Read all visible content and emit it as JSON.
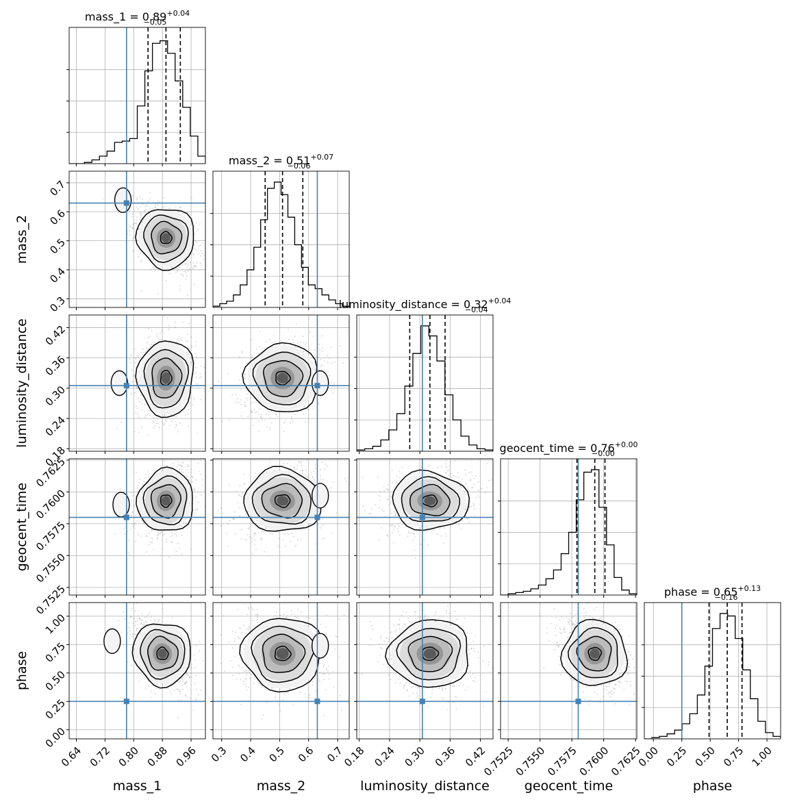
{
  "chart_data": {
    "type": "corner",
    "parameters": [
      {
        "name": "mass_1",
        "range": [
          0.62,
          1.0
        ],
        "ticks": [
          0.64,
          0.72,
          0.8,
          0.88,
          0.96
        ],
        "tick_labels": [
          "0.64",
          "0.72",
          "0.80",
          "0.88",
          "0.96"
        ],
        "median": 0.89,
        "q_low": 0.84,
        "q_high": 0.93,
        "truth": 0.78,
        "title_value": "0.89",
        "title_plus": "+0.04",
        "title_minus": "−0.05",
        "xlabel": "mass_1",
        "ylabel": ""
      },
      {
        "name": "mass_2",
        "range": [
          0.27,
          0.74
        ],
        "ticks": [
          0.3,
          0.4,
          0.5,
          0.6,
          0.7
        ],
        "tick_labels": [
          "0.3",
          "0.4",
          "0.5",
          "0.6",
          "0.7"
        ],
        "median": 0.51,
        "q_low": 0.45,
        "q_high": 0.58,
        "truth": 0.63,
        "title_value": "0.51",
        "title_plus": "+0.07",
        "title_minus": "−0.06",
        "xlabel": "mass_2",
        "ylabel": "mass_2"
      },
      {
        "name": "luminosity_distance",
        "range": [
          0.175,
          0.445
        ],
        "ticks": [
          0.18,
          0.24,
          0.3,
          0.36,
          0.42
        ],
        "tick_labels": [
          "0.18",
          "0.24",
          "0.30",
          "0.36",
          "0.42"
        ],
        "median": 0.32,
        "q_low": 0.28,
        "q_high": 0.35,
        "truth": 0.305,
        "title_value": "0.32",
        "title_plus": "+0.04",
        "title_minus": "−0.04",
        "xlabel": "luminosity_distance",
        "ylabel": "luminosity_distance"
      },
      {
        "name": "geocent_time",
        "range": [
          0.7519,
          0.7626
        ],
        "ticks": [
          0.7525,
          0.755,
          0.7575,
          0.76,
          0.7625
        ],
        "tick_labels": [
          "0.7525",
          "0.7550",
          "0.7575",
          "0.7600",
          "0.7625"
        ],
        "median": 0.7593,
        "q_low": 0.7579,
        "q_high": 0.7601,
        "truth": 0.758,
        "title_value": "0.76",
        "title_plus": "+0.00",
        "title_minus": "−0.00",
        "xlabel": "geocent_time",
        "ylabel": "geocent_time"
      },
      {
        "name": "phase",
        "range": [
          -0.08,
          1.12
        ],
        "ticks": [
          0.0,
          0.25,
          0.5,
          0.75,
          1.0
        ],
        "tick_labels": [
          "0.00",
          "0.25",
          "0.50",
          "0.75",
          "1.00"
        ],
        "median": 0.65,
        "q_low": 0.49,
        "q_high": 0.78,
        "truth": 0.25,
        "title_value": "0.65",
        "title_plus": "+0.13",
        "title_minus": "−0.16",
        "xlabel": "phase",
        "ylabel": "phase"
      }
    ],
    "histograms": [
      [
        0.0,
        0.0,
        0.01,
        0.03,
        0.06,
        0.1,
        0.17,
        0.18,
        0.2,
        0.46,
        0.74,
        0.96,
        0.98,
        0.88,
        0.66,
        0.45,
        0.22,
        0.06
      ],
      [
        0.01,
        0.03,
        0.05,
        0.1,
        0.18,
        0.3,
        0.48,
        0.7,
        0.95,
        1.0,
        0.9,
        0.72,
        0.5,
        0.32,
        0.18,
        0.15,
        0.1,
        0.06,
        0.03,
        0.01
      ],
      [
        0.01,
        0.02,
        0.04,
        0.09,
        0.17,
        0.3,
        0.52,
        0.78,
        1.0,
        0.92,
        0.72,
        0.45,
        0.25,
        0.12,
        0.05,
        0.02,
        0.01
      ],
      [
        0.0,
        0.01,
        0.02,
        0.03,
        0.05,
        0.08,
        0.13,
        0.2,
        0.33,
        0.5,
        0.76,
        0.98,
        1.0,
        0.7,
        0.4,
        0.14,
        0.04,
        0.01
      ],
      [
        0.0,
        0.01,
        0.02,
        0.04,
        0.07,
        0.12,
        0.2,
        0.35,
        0.58,
        0.88,
        1.0,
        0.98,
        0.8,
        0.55,
        0.32,
        0.14,
        0.05,
        0.02
      ]
    ],
    "pairs": [
      {
        "row": 1,
        "col": 0,
        "center": [
          0.89,
          0.51
        ],
        "sigma": [
          0.035,
          0.048
        ],
        "rho": -0.45,
        "blob": [
          0.77,
          0.64
        ]
      },
      {
        "row": 2,
        "col": 0,
        "center": [
          0.89,
          0.32
        ],
        "sigma": [
          0.034,
          0.033
        ],
        "rho": 0.1,
        "blob": [
          0.76,
          0.31
        ]
      },
      {
        "row": 2,
        "col": 1,
        "center": [
          0.51,
          0.32
        ],
        "sigma": [
          0.055,
          0.03
        ],
        "rho": 0.2,
        "blob": [
          0.64,
          0.31
        ]
      },
      {
        "row": 3,
        "col": 0,
        "center": [
          0.89,
          0.7593
        ],
        "sigma": [
          0.034,
          0.0011
        ],
        "rho": 0.3,
        "blob": [
          0.765,
          0.759
        ]
      },
      {
        "row": 3,
        "col": 1,
        "center": [
          0.51,
          0.7593
        ],
        "sigma": [
          0.058,
          0.0011
        ],
        "rho": 0.25,
        "blob": [
          0.64,
          0.7597
        ]
      },
      {
        "row": 3,
        "col": 2,
        "center": [
          0.32,
          0.7593
        ],
        "sigma": [
          0.033,
          0.001
        ],
        "rho": 0.2
      },
      {
        "row": 4,
        "col": 0,
        "center": [
          0.88,
          0.67
        ],
        "sigma": [
          0.035,
          0.13
        ],
        "rho": -0.5,
        "blob": [
          0.74,
          0.78
        ]
      },
      {
        "row": 4,
        "col": 1,
        "center": [
          0.51,
          0.67
        ],
        "sigma": [
          0.06,
          0.14
        ],
        "rho": 0.0,
        "blob": [
          0.64,
          0.74
        ]
      },
      {
        "row": 4,
        "col": 2,
        "center": [
          0.32,
          0.67
        ],
        "sigma": [
          0.035,
          0.13
        ],
        "rho": -0.15
      },
      {
        "row": 4,
        "col": 3,
        "center": [
          0.7593,
          0.67
        ],
        "sigma": [
          0.0011,
          0.13
        ],
        "rho": -0.35
      }
    ],
    "colors": {
      "truth": "#4682b4",
      "contour": "#000000",
      "points": "#9a9a9a",
      "grid": "#b0b0b0"
    },
    "grid": true
  }
}
